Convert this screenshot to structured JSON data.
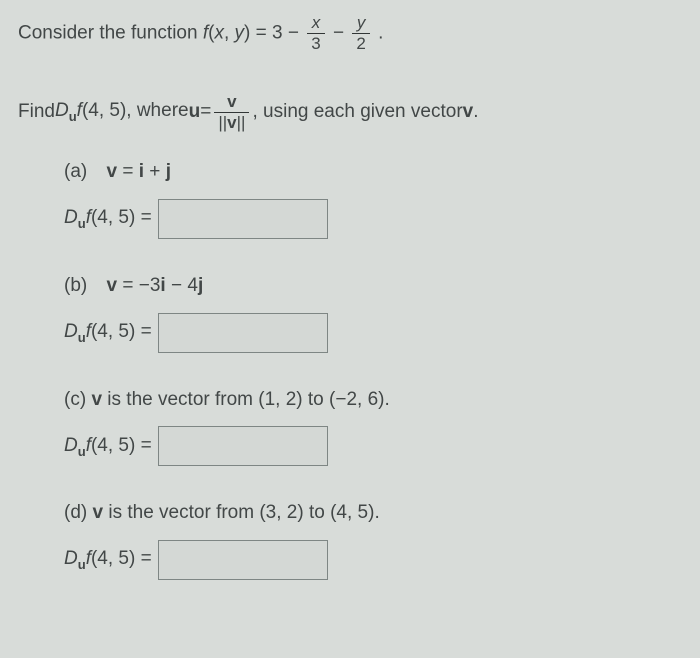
{
  "intro": {
    "prefix": "Consider the function ",
    "func_lhs_f": "f",
    "func_lhs_paren": "(",
    "func_lhs_x": "x",
    "func_lhs_comma": ", ",
    "func_lhs_y": "y",
    "func_lhs_close": ") = 3 − ",
    "frac1_num": "x",
    "frac1_den": "3",
    "between": " − ",
    "frac2_num": "y",
    "frac2_den": "2",
    "period": "."
  },
  "find": {
    "prefix1": "Find ",
    "D": "D",
    "sub_u": "u",
    "f_of": "f",
    "args": "(4, 5), where ",
    "u_eq": "u",
    "eq": " = ",
    "frac_num": "v",
    "frac_den": "||v||",
    "suffix": ", using each given vector ",
    "v_end": "v",
    "period": "."
  },
  "parts": {
    "a": {
      "tag": "(a)",
      "label_pre": "v",
      "label_post": " = i + j",
      "lhs_D": "D",
      "lhs_sub": "u",
      "lhs_f": "f",
      "lhs_args": "(4, 5) ="
    },
    "b": {
      "tag": "(b)",
      "label_pre": "v",
      "label_post": " = −3i − 4j",
      "lhs_D": "D",
      "lhs_sub": "u",
      "lhs_f": "f",
      "lhs_args": "(4, 5) ="
    },
    "c": {
      "tag": "(c) ",
      "label_pre": "v",
      "label_post": " is the vector from (1, 2) to (−2, 6).",
      "lhs_D": "D",
      "lhs_sub": "u",
      "lhs_f": "f",
      "lhs_args": "(4, 5) ="
    },
    "d": {
      "tag": "(d) ",
      "label_pre": "v",
      "label_post": " is the vector from (3, 2) to (4, 5).",
      "lhs_D": "D",
      "lhs_sub": "u",
      "lhs_f": "f",
      "lhs_args": "(4, 5) ="
    }
  }
}
